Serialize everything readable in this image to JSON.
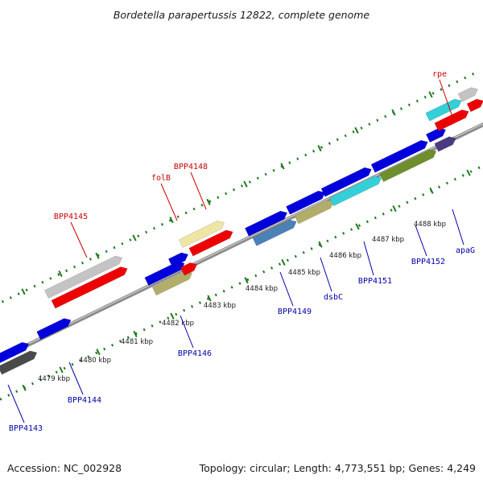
{
  "title": "Bordetella parapertussis 12822, complete genome",
  "accession": "Accession: NC_002928",
  "summary": "Topology: circular; Length: 4,773,551 bp; Genes: 4,249",
  "colors": {
    "axis": "#8c8c8c",
    "tick": "#1f7a1f",
    "label_top": "#cc0000",
    "label_bottom": "#0000aa",
    "red": "#ee0000",
    "blue": "#0000dd",
    "silver": "#c4c4c4",
    "cream": "#efe6a4",
    "khaki": "#b2ae6a",
    "cyan": "#33d0d8",
    "olive": "#6f8e2c",
    "steel": "#4a82b8",
    "dark": "#4a3a82",
    "gray": "#707070",
    "dark_gray": "#4a4a4a"
  },
  "ticks": [
    "4479 kbp",
    "4480 kbp",
    "4481 kbp",
    "4482 kbp",
    "4483 kbp",
    "4484 kbp",
    "4485 kbp",
    "4486 kbp",
    "4487 kbp",
    "4488 kbp"
  ],
  "labels_top": [
    "BPP4145",
    "folB",
    "BPP4148",
    "rpe"
  ],
  "labels_bottom": [
    "BPP4143",
    "BPP4144",
    "BPP4146",
    "BPP4149",
    "dsbC",
    "BPP4151",
    "BPP4152",
    "apaG"
  ]
}
